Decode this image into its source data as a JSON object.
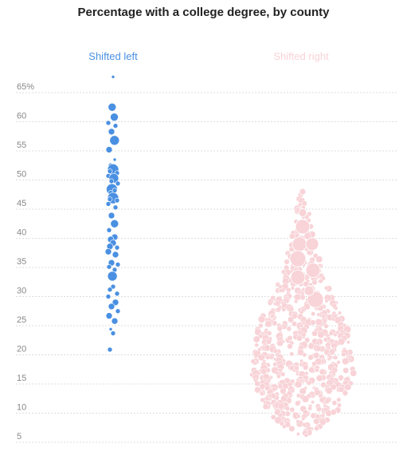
{
  "chart_data": {
    "type": "scatter",
    "title": "Percentage with a college degree, by county",
    "ylabel": "",
    "ylim": [
      5,
      65
    ],
    "y_ticks": [
      "65%",
      "60",
      "55",
      "50",
      "45",
      "40",
      "35",
      "30",
      "25",
      "20",
      "15",
      "10",
      "5"
    ],
    "y_tick_values": [
      65,
      60,
      55,
      50,
      45,
      40,
      35,
      30,
      25,
      20,
      15,
      10,
      5
    ],
    "grid": true,
    "groups": [
      {
        "name": "Shifted left",
        "color": "#4a90e2"
      },
      {
        "name": "Shifted right",
        "color": "#f8d3d7"
      }
    ],
    "shifted_left_points": [
      {
        "y": 67.7,
        "r": 2
      },
      {
        "y": 62.5,
        "r": 5
      },
      {
        "y": 60.8,
        "r": 5
      },
      {
        "y": 59.8,
        "r": 3
      },
      {
        "y": 59.3,
        "r": 3
      },
      {
        "y": 58.3,
        "r": 4
      },
      {
        "y": 56.8,
        "r": 6
      },
      {
        "y": 55.2,
        "r": 4
      },
      {
        "y": 53.5,
        "r": 2
      },
      {
        "y": 52.5,
        "r": 3
      },
      {
        "y": 51.8,
        "r": 7
      },
      {
        "y": 51.5,
        "r": 3
      },
      {
        "y": 51.2,
        "r": 3
      },
      {
        "y": 50.7,
        "r": 3
      },
      {
        "y": 50.3,
        "r": 6
      },
      {
        "y": 49.8,
        "r": 3
      },
      {
        "y": 49.4,
        "r": 3
      },
      {
        "y": 48.4,
        "r": 7
      },
      {
        "y": 48.2,
        "r": 3
      },
      {
        "y": 47.8,
        "r": 3
      },
      {
        "y": 46.9,
        "r": 7
      },
      {
        "y": 46.7,
        "r": 3
      },
      {
        "y": 46.5,
        "r": 3
      },
      {
        "y": 45.9,
        "r": 3
      },
      {
        "y": 45.3,
        "r": 3
      },
      {
        "y": 43.9,
        "r": 4
      },
      {
        "y": 42.5,
        "r": 5
      },
      {
        "y": 41.4,
        "r": 3
      },
      {
        "y": 40.2,
        "r": 4
      },
      {
        "y": 39.8,
        "r": 4
      },
      {
        "y": 39.2,
        "r": 4
      },
      {
        "y": 38.6,
        "r": 4
      },
      {
        "y": 38.4,
        "r": 3
      },
      {
        "y": 37.7,
        "r": 4
      },
      {
        "y": 37.2,
        "r": 4
      },
      {
        "y": 35.8,
        "r": 4
      },
      {
        "y": 35.5,
        "r": 3
      },
      {
        "y": 35.1,
        "r": 3
      },
      {
        "y": 34.6,
        "r": 3
      },
      {
        "y": 33.5,
        "r": 6
      },
      {
        "y": 31.7,
        "r": 3
      },
      {
        "y": 31.2,
        "r": 3
      },
      {
        "y": 30.5,
        "r": 3
      },
      {
        "y": 30.0,
        "r": 3
      },
      {
        "y": 29.0,
        "r": 4
      },
      {
        "y": 28.3,
        "r": 4
      },
      {
        "y": 27.5,
        "r": 3
      },
      {
        "y": 26.7,
        "r": 4
      },
      {
        "y": 25.8,
        "r": 4
      },
      {
        "y": 24.4,
        "r": 2
      },
      {
        "y": 23.7,
        "r": 3
      },
      {
        "y": 20.9,
        "r": 3
      }
    ],
    "shifted_right_range": [
      6,
      48
    ]
  }
}
